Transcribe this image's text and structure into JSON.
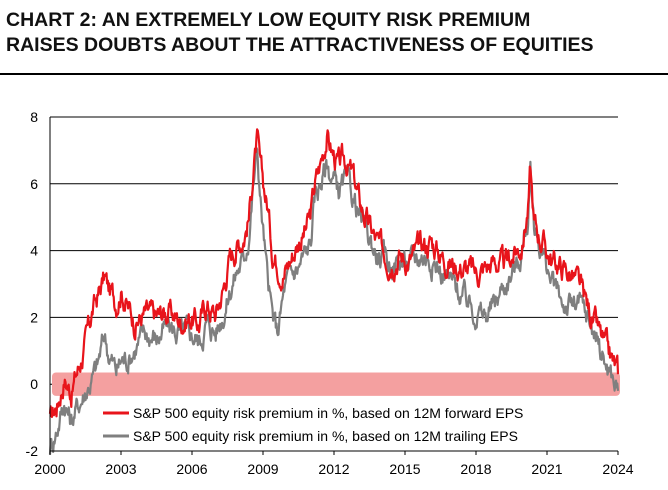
{
  "chart_data": {
    "type": "line",
    "title": "CHART 2: AN EXTREMELY LOW EQUITY RISK PREMIUM RAISES DOUBTS ABOUT THE ATTRACTIVENESS OF EQUITIES",
    "title_lines": [
      "CHART 2: AN EXTREMELY LOW EQUITY RISK PREMIUM",
      "RAISES DOUBTS ABOUT THE ATTRACTIVENESS OF EQUITIES"
    ],
    "xlabel": "",
    "ylabel": "",
    "xlim": [
      2000,
      2024
    ],
    "ylim": [
      -2,
      8
    ],
    "x_ticks": [
      "2000",
      "2003",
      "2006",
      "2009",
      "2012",
      "2015",
      "2018",
      "2021",
      "2024"
    ],
    "y_ticks": [
      "8",
      "6",
      "4",
      "2",
      "0",
      "-2"
    ],
    "grid": "horizontal",
    "highlight_band": {
      "from": -0.35,
      "to": 0.35,
      "color": "#f4a0a0"
    },
    "series": [
      {
        "name": "S&P 500 equity risk premium in %, based on 12M forward EPS",
        "color": "#e8141b",
        "points": [
          [
            2000.0,
            -1.1
          ],
          [
            2000.3,
            -0.6
          ],
          [
            2000.6,
            0.2
          ],
          [
            2000.9,
            -0.2
          ],
          [
            2001.2,
            0.5
          ],
          [
            2001.5,
            1.2
          ],
          [
            2001.8,
            2.2
          ],
          [
            2002.0,
            2.6
          ],
          [
            2002.3,
            3.2
          ],
          [
            2002.5,
            2.8
          ],
          [
            2002.8,
            2.5
          ],
          [
            2003.0,
            2.9
          ],
          [
            2003.3,
            2.3
          ],
          [
            2003.6,
            1.9
          ],
          [
            2004.0,
            2.1
          ],
          [
            2004.5,
            2.0
          ],
          [
            2005.0,
            2.2
          ],
          [
            2005.5,
            1.9
          ],
          [
            2006.0,
            2.0
          ],
          [
            2006.3,
            1.8
          ],
          [
            2006.6,
            2.4
          ],
          [
            2007.0,
            2.1
          ],
          [
            2007.3,
            2.8
          ],
          [
            2007.6,
            3.8
          ],
          [
            2007.9,
            4.2
          ],
          [
            2008.2,
            4.5
          ],
          [
            2008.4,
            5.0
          ],
          [
            2008.6,
            6.5
          ],
          [
            2008.75,
            7.3
          ],
          [
            2008.9,
            6.3
          ],
          [
            2009.2,
            5.3
          ],
          [
            2009.4,
            4.0
          ],
          [
            2009.6,
            3.7
          ],
          [
            2009.9,
            3.4
          ],
          [
            2010.2,
            3.8
          ],
          [
            2010.5,
            4.3
          ],
          [
            2010.8,
            4.6
          ],
          [
            2011.0,
            5.0
          ],
          [
            2011.2,
            6.0
          ],
          [
            2011.4,
            6.5
          ],
          [
            2011.7,
            7.5
          ],
          [
            2011.9,
            7.0
          ],
          [
            2012.2,
            6.5
          ],
          [
            2012.5,
            6.7
          ],
          [
            2012.8,
            6.2
          ],
          [
            2013.1,
            5.4
          ],
          [
            2013.5,
            4.7
          ],
          [
            2013.9,
            4.1
          ],
          [
            2014.3,
            3.8
          ],
          [
            2014.8,
            3.9
          ],
          [
            2015.2,
            3.7
          ],
          [
            2015.7,
            4.1
          ],
          [
            2016.1,
            4.3
          ],
          [
            2016.5,
            3.9
          ],
          [
            2017.0,
            3.6
          ],
          [
            2017.5,
            3.5
          ],
          [
            2018.0,
            3.3
          ],
          [
            2018.4,
            3.5
          ],
          [
            2018.8,
            3.7
          ],
          [
            2019.2,
            3.5
          ],
          [
            2019.6,
            3.9
          ],
          [
            2019.95,
            4.2
          ],
          [
            2020.2,
            5.3
          ],
          [
            2020.3,
            6.4
          ],
          [
            2020.45,
            4.8
          ],
          [
            2020.8,
            4.3
          ],
          [
            2021.2,
            3.7
          ],
          [
            2021.6,
            3.5
          ],
          [
            2022.0,
            3.3
          ],
          [
            2022.3,
            3.0
          ],
          [
            2022.6,
            2.5
          ],
          [
            2022.9,
            2.0
          ],
          [
            2023.2,
            1.5
          ],
          [
            2023.5,
            1.0
          ],
          [
            2023.8,
            0.6
          ],
          [
            2024.0,
            0.3
          ]
        ]
      },
      {
        "name": "S&P 500 equity risk premium in %, based on 12M trailing EPS",
        "color": "#7f7f7f",
        "points": [
          [
            2000.0,
            -1.9
          ],
          [
            2000.3,
            -1.3
          ],
          [
            2000.6,
            -0.5
          ],
          [
            2000.9,
            -1.1
          ],
          [
            2001.2,
            -0.6
          ],
          [
            2001.5,
            -0.2
          ],
          [
            2001.8,
            0.2
          ],
          [
            2002.0,
            0.5
          ],
          [
            2002.3,
            1.5
          ],
          [
            2002.5,
            0.9
          ],
          [
            2002.8,
            0.4
          ],
          [
            2003.0,
            0.7
          ],
          [
            2003.3,
            0.8
          ],
          [
            2003.6,
            1.1
          ],
          [
            2004.0,
            1.5
          ],
          [
            2004.5,
            1.4
          ],
          [
            2005.0,
            1.7
          ],
          [
            2005.5,
            1.5
          ],
          [
            2006.0,
            1.5
          ],
          [
            2006.3,
            1.3
          ],
          [
            2006.6,
            1.8
          ],
          [
            2007.0,
            1.6
          ],
          [
            2007.3,
            2.1
          ],
          [
            2007.6,
            2.8
          ],
          [
            2007.9,
            3.4
          ],
          [
            2008.2,
            3.8
          ],
          [
            2008.4,
            4.5
          ],
          [
            2008.6,
            6.0
          ],
          [
            2008.75,
            7.0
          ],
          [
            2008.9,
            5.5
          ],
          [
            2009.2,
            3.0
          ],
          [
            2009.4,
            2.0
          ],
          [
            2009.6,
            1.5
          ],
          [
            2009.9,
            2.8
          ],
          [
            2010.2,
            3.3
          ],
          [
            2010.5,
            3.5
          ],
          [
            2010.8,
            3.9
          ],
          [
            2011.0,
            4.2
          ],
          [
            2011.2,
            5.6
          ],
          [
            2011.4,
            6.0
          ],
          [
            2011.7,
            6.6
          ],
          [
            2011.9,
            6.2
          ],
          [
            2012.2,
            5.8
          ],
          [
            2012.5,
            6.0
          ],
          [
            2012.8,
            5.6
          ],
          [
            2013.1,
            5.0
          ],
          [
            2013.5,
            4.3
          ],
          [
            2013.9,
            3.8
          ],
          [
            2014.3,
            3.6
          ],
          [
            2014.8,
            3.7
          ],
          [
            2015.2,
            3.6
          ],
          [
            2015.7,
            3.9
          ],
          [
            2016.1,
            3.8
          ],
          [
            2016.5,
            3.4
          ],
          [
            2017.0,
            3.0
          ],
          [
            2017.5,
            2.6
          ],
          [
            2018.0,
            2.2
          ],
          [
            2018.4,
            2.0
          ],
          [
            2018.8,
            2.4
          ],
          [
            2019.2,
            3.0
          ],
          [
            2019.6,
            3.4
          ],
          [
            2019.95,
            4.0
          ],
          [
            2020.2,
            5.0
          ],
          [
            2020.3,
            6.2
          ],
          [
            2020.45,
            4.7
          ],
          [
            2020.8,
            4.0
          ],
          [
            2021.2,
            3.0
          ],
          [
            2021.6,
            2.5
          ],
          [
            2022.0,
            2.3
          ],
          [
            2022.3,
            2.4
          ],
          [
            2022.6,
            2.1
          ],
          [
            2022.9,
            1.7
          ],
          [
            2023.2,
            1.2
          ],
          [
            2023.5,
            0.6
          ],
          [
            2023.8,
            0.1
          ],
          [
            2024.0,
            -0.2
          ]
        ]
      }
    ]
  }
}
